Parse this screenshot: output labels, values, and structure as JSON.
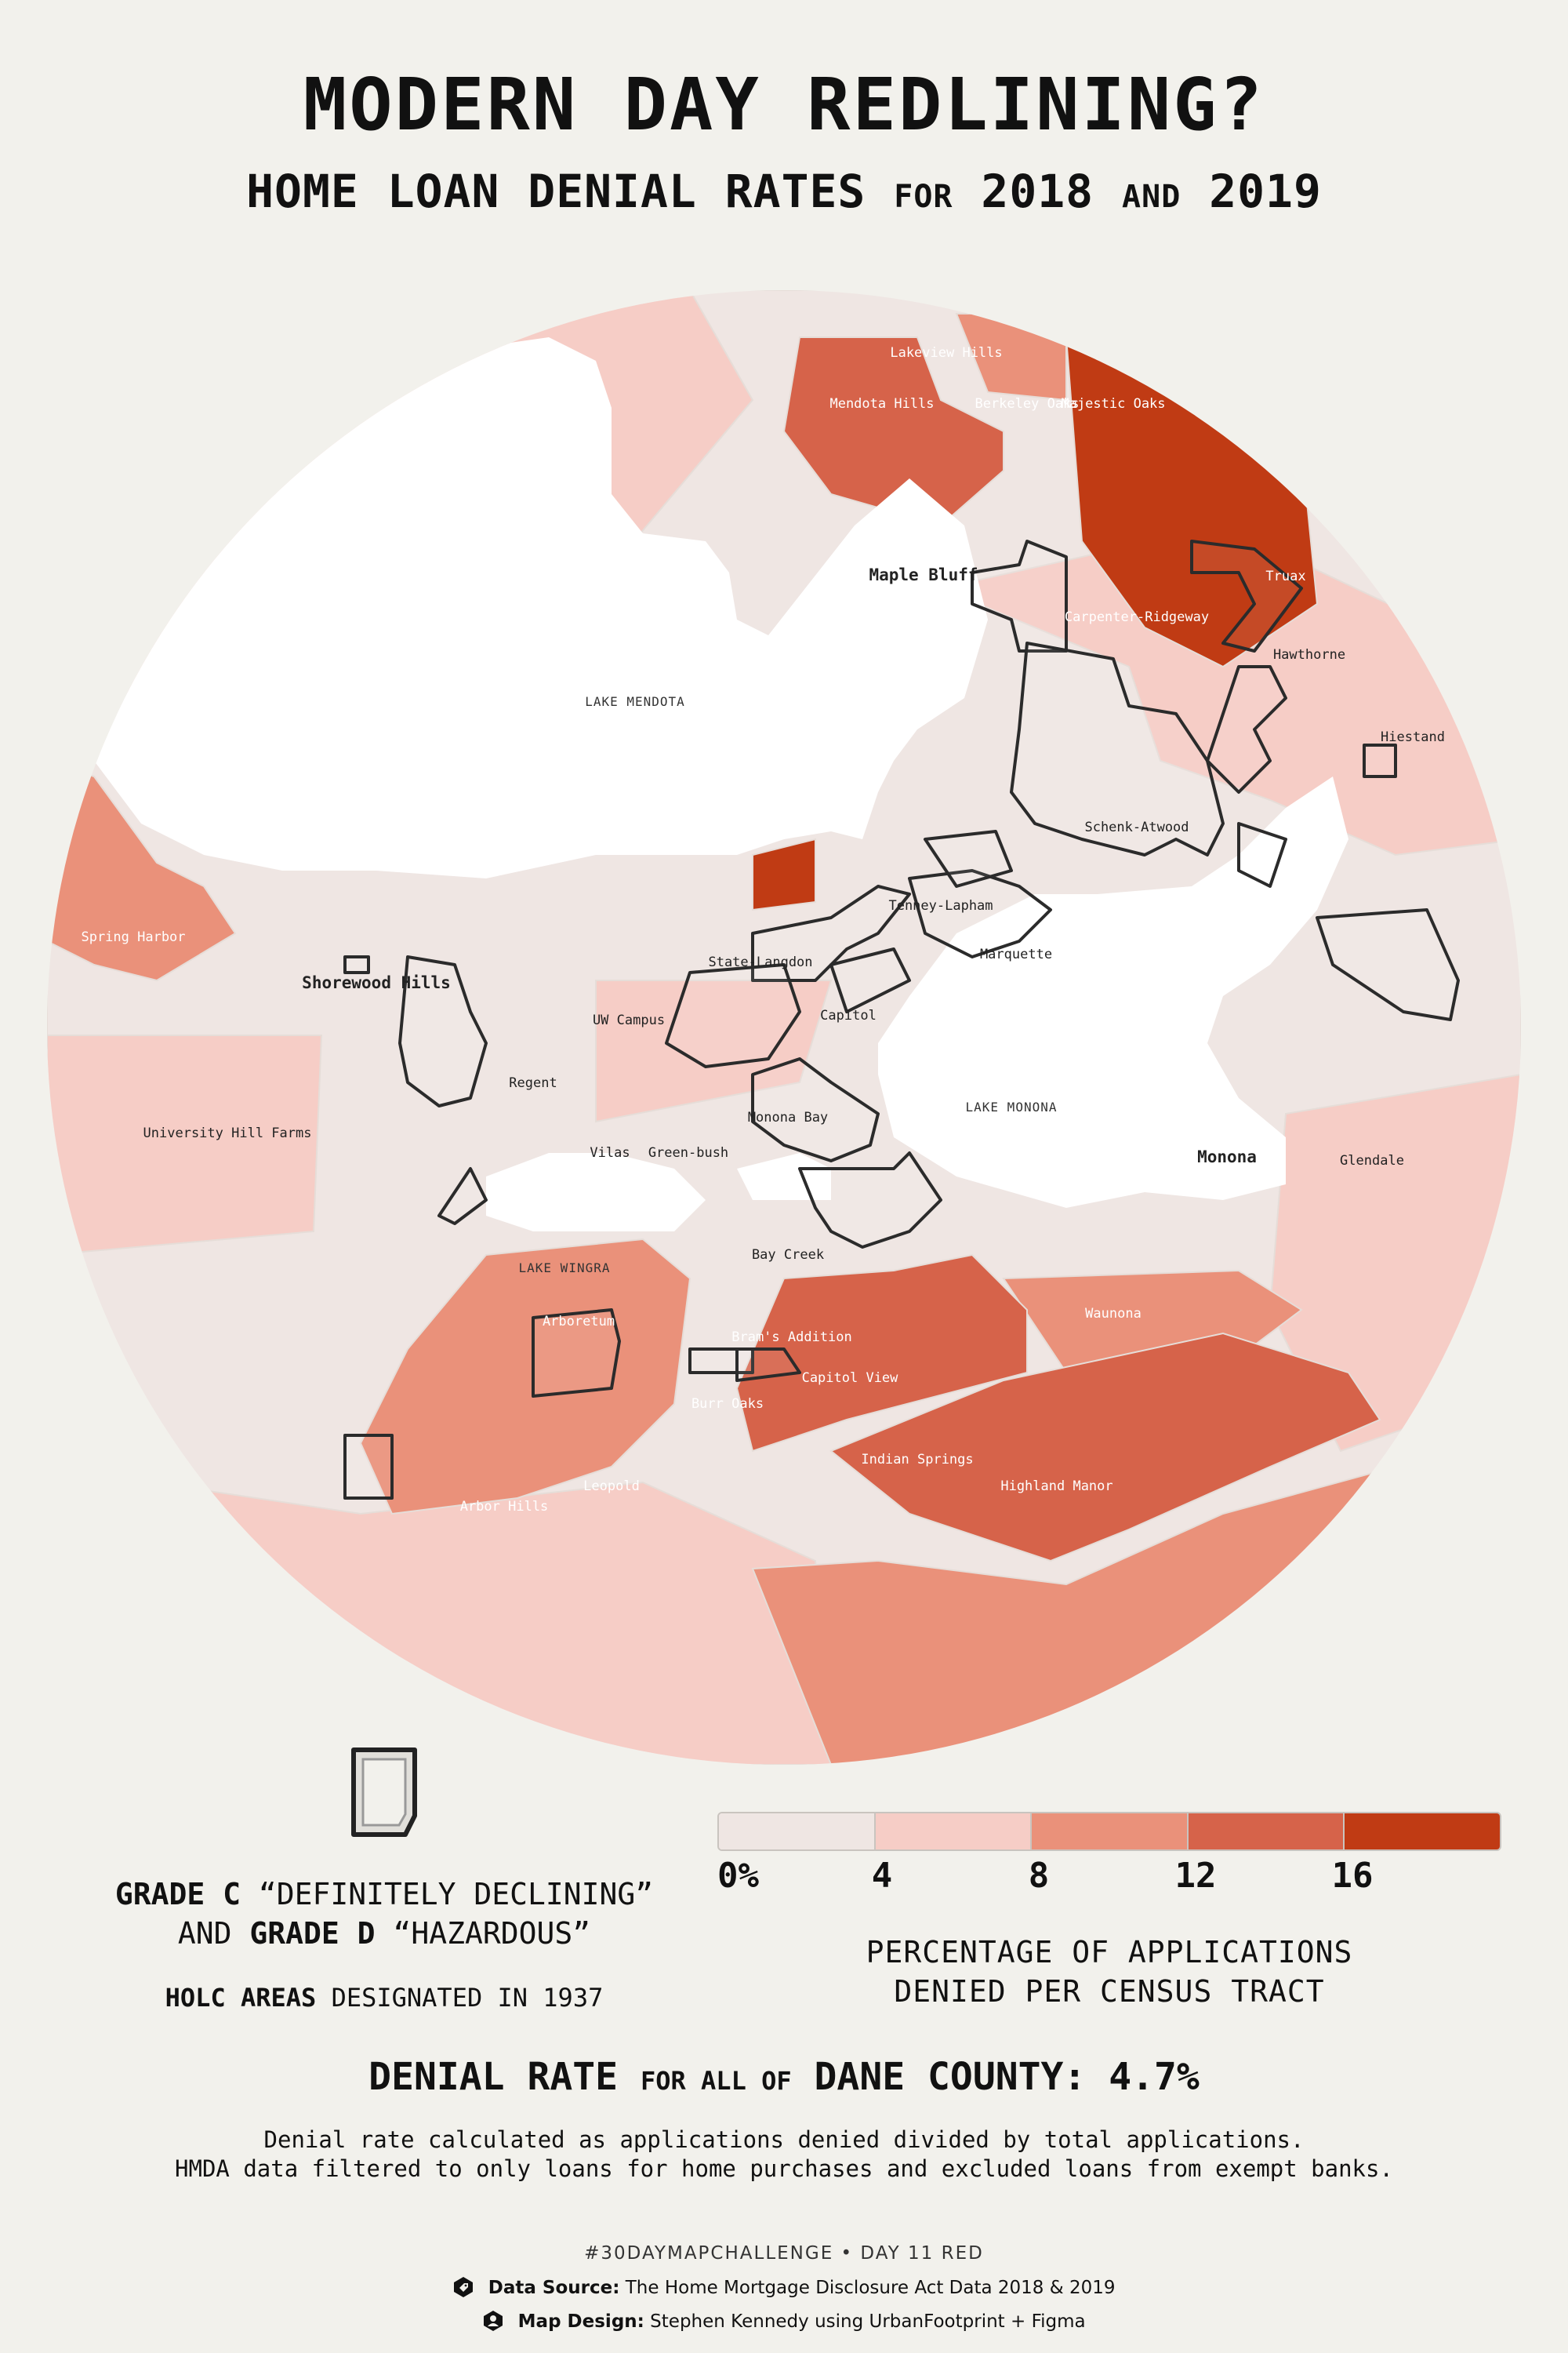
{
  "title": "MODERN DAY REDLINING?",
  "subtitle": {
    "part1": "HOME LOAN DENIAL RATES",
    "part2": "FOR",
    "part3": "2018",
    "part4": "AND",
    "part5": "2019"
  },
  "colors": {
    "background": "#f2f1ec",
    "bin_0_4": "#efe6e3",
    "bin_4_8": "#f6cdc6",
    "bin_8_12": "#ea917a",
    "bin_12_16": "#d6634a",
    "bin_16_plus": "#c03b14",
    "water": "#ffffff",
    "holc_outline": "#2b2b2b"
  },
  "map": {
    "lakes": {
      "mendota": "LAKE MENDOTA",
      "monona": "LAKE MONONA",
      "wingra": "LAKE WINGRA"
    },
    "places": {
      "lakeview_hills": "Lakeview Hills",
      "mendota_hills": "Mendota Hills",
      "berkeley_oaks": "Berkeley Oaks",
      "majestic_oaks": "Majestic Oaks",
      "maple_bluff": "Maple Bluff",
      "truax": "Truax",
      "carpenter_ridgeway": "Carpenter-Ridgeway",
      "hawthorne": "Hawthorne",
      "hiestand": "Hiestand",
      "schenk_atwood": "Schenk-Atwood",
      "tenney_lapham": "Tenney-Lapham",
      "marquette": "Marquette",
      "state_langdon": "State-Langdon",
      "capitol": "Capitol",
      "spring_harbor": "Spring Harbor",
      "shorewood_hills": "Shorewood Hills",
      "uw_campus": "UW Campus",
      "regent": "Regent",
      "university_hill_farms": "University Hill Farms",
      "monona_bay": "Monona Bay",
      "vilas": "Vilas",
      "greenbush": "Green-bush",
      "monona": "Monona",
      "glendale": "Glendale",
      "bay_creek": "Bay Creek",
      "arboretum": "Arboretum",
      "brams_addition": "Bram's Addition",
      "capitol_view": "Capitol View",
      "burr_oaks": "Burr Oaks",
      "waunona": "Waunona",
      "indian_springs": "Indian Springs",
      "highland_manor": "Highland Manor",
      "leopold": "Leopold",
      "arbor_hills": "Arbor Hills"
    }
  },
  "legend": {
    "holc": {
      "grade_c_label": "GRADE C",
      "grade_c_desc": "“DEFINITELY DECLINING”",
      "and": "AND",
      "grade_d_label": "GRADE D",
      "grade_d_desc": "“HAZARDOUS”",
      "holc_areas": "HOLC AREAS",
      "designated": "DESIGNATED IN 1937"
    },
    "scale": {
      "ticks": [
        "0%",
        "4",
        "8",
        "12",
        "16"
      ],
      "caption_line1": "PERCENTAGE OF APPLICATIONS",
      "caption_line2": "DENIED PER CENSUS TRACT"
    }
  },
  "county": {
    "part1": "DENIAL RATE",
    "part2": "FOR ALL OF",
    "part3": "DANE COUNTY: 4.7%"
  },
  "notes": {
    "line1": "Denial rate calculated as applications denied divided by total applications.",
    "line2": "HMDA data filtered to only loans for home purchases and excluded loans from exempt banks."
  },
  "footer": {
    "tag": "#30DAYMAPCHALLENGE • DAY 11 RED",
    "source_label": "Data Source:",
    "source_text": "The Home Mortgage Disclosure Act Data 2018 & 2019",
    "design_label": "Map Design:",
    "design_text": "Stephen Kennedy using UrbanFootprint + Figma",
    "source_icon": "tag-icon",
    "design_icon": "user-icon"
  }
}
